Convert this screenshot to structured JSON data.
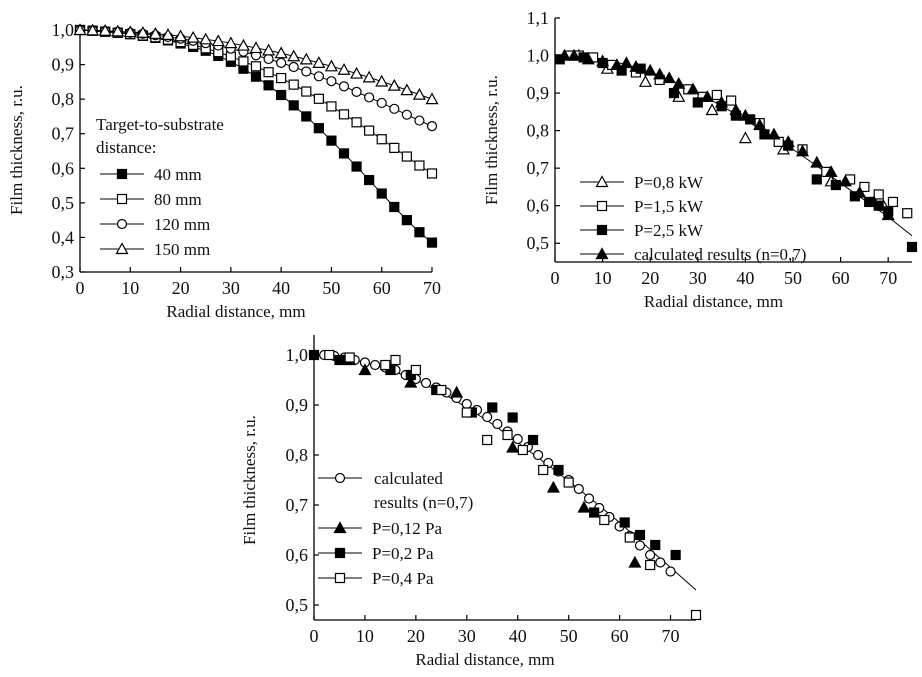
{
  "chart_data": [
    {
      "type": "scatter",
      "xlabel": "Radial distance, mm",
      "ylabel": "Film thickness, r.u.",
      "xlim": [
        0,
        70
      ],
      "ylim": [
        0.3,
        1.0
      ],
      "xticks": [
        "0",
        "10",
        "20",
        "30",
        "40",
        "50",
        "60",
        "70"
      ],
      "yticks": [
        "0,3",
        "0,4",
        "0,5",
        "0,6",
        "0,7",
        "0,8",
        "0,9",
        "1,0"
      ],
      "legend_title": [
        "Target-to-substrate",
        "distance:"
      ],
      "legend_placement": "left-middle",
      "grid": false,
      "series": [
        {
          "name": "40 mm",
          "marker": "square-filled",
          "x": [
            0,
            2.5,
            5,
            7.5,
            10,
            12.5,
            15,
            17.5,
            20,
            22.5,
            25,
            27.5,
            30,
            32.5,
            35,
            37.5,
            40,
            42.5,
            45,
            47.5,
            50,
            52.5,
            55,
            57.5,
            60,
            62.5,
            65,
            67.5,
            70
          ],
          "y": [
            1.0,
            0.998,
            0.995,
            0.992,
            0.988,
            0.983,
            0.977,
            0.97,
            0.961,
            0.951,
            0.94,
            0.925,
            0.908,
            0.888,
            0.865,
            0.84,
            0.812,
            0.782,
            0.75,
            0.716,
            0.68,
            0.643,
            0.605,
            0.566,
            0.527,
            0.488,
            0.45,
            0.415,
            0.385
          ]
        },
        {
          "name": "80 mm",
          "marker": "square-open",
          "x": [
            0,
            2.5,
            5,
            7.5,
            10,
            12.5,
            15,
            17.5,
            20,
            22.5,
            25,
            27.5,
            30,
            32.5,
            35,
            37.5,
            40,
            42.5,
            45,
            47.5,
            50,
            52.5,
            55,
            57.5,
            60,
            62.5,
            65,
            67.5,
            70
          ],
          "y": [
            1.0,
            0.998,
            0.995,
            0.992,
            0.988,
            0.984,
            0.979,
            0.972,
            0.965,
            0.957,
            0.947,
            0.936,
            0.923,
            0.909,
            0.895,
            0.878,
            0.861,
            0.842,
            0.822,
            0.801,
            0.779,
            0.756,
            0.733,
            0.709,
            0.684,
            0.659,
            0.634,
            0.608,
            0.585
          ]
        },
        {
          "name": "120 mm",
          "marker": "circle-open",
          "x": [
            0,
            2.5,
            5,
            7.5,
            10,
            12.5,
            15,
            17.5,
            20,
            22.5,
            25,
            27.5,
            30,
            32.5,
            35,
            37.5,
            40,
            42.5,
            45,
            47.5,
            50,
            52.5,
            55,
            57.5,
            60,
            62.5,
            65,
            67.5,
            70
          ],
          "y": [
            1.0,
            0.999,
            0.997,
            0.995,
            0.992,
            0.989,
            0.985,
            0.98,
            0.975,
            0.969,
            0.962,
            0.955,
            0.946,
            0.937,
            0.927,
            0.916,
            0.905,
            0.893,
            0.88,
            0.866,
            0.852,
            0.837,
            0.821,
            0.805,
            0.789,
            0.772,
            0.755,
            0.738,
            0.722
          ]
        },
        {
          "name": "150 mm",
          "marker": "triangle-open",
          "x": [
            0,
            2.5,
            5,
            7.5,
            10,
            12.5,
            15,
            17.5,
            20,
            22.5,
            25,
            27.5,
            30,
            32.5,
            35,
            37.5,
            40,
            42.5,
            45,
            47.5,
            50,
            52.5,
            55,
            57.5,
            60,
            62.5,
            65,
            67.5,
            70
          ],
          "y": [
            1.0,
            0.999,
            0.998,
            0.996,
            0.994,
            0.992,
            0.989,
            0.986,
            0.982,
            0.978,
            0.973,
            0.968,
            0.962,
            0.955,
            0.948,
            0.941,
            0.933,
            0.924,
            0.915,
            0.905,
            0.895,
            0.885,
            0.874,
            0.863,
            0.851,
            0.839,
            0.826,
            0.813,
            0.8
          ]
        }
      ]
    },
    {
      "type": "scatter",
      "xlabel": "Radial distance, mm",
      "ylabel": "Film thickness, r.u.",
      "xlim": [
        0,
        75
      ],
      "ylim": [
        0.45,
        1.1
      ],
      "xticks": [
        "0",
        "10",
        "20",
        "30",
        "40",
        "50",
        "60",
        "70"
      ],
      "yticks": [
        "0,5",
        "0,6",
        "0,7",
        "0,8",
        "0,9",
        "1,0",
        "1,1"
      ],
      "legend_placement": "bottom-left",
      "grid": false,
      "series": [
        {
          "name": "P=0,8 kW",
          "marker": "triangle-open",
          "x": [
            5,
            11,
            19,
            26,
            33,
            40,
            48,
            58,
            69
          ],
          "y": [
            1.0,
            0.965,
            0.93,
            0.89,
            0.855,
            0.78,
            0.75,
            0.665,
            0.6
          ]
        },
        {
          "name": "P=1,5 kW",
          "marker": "square-open",
          "x": [
            3,
            5,
            8,
            12,
            17,
            22,
            28,
            31,
            34,
            37,
            43,
            47,
            52,
            57,
            62,
            65,
            68,
            71,
            74
          ],
          "y": [
            1.0,
            1.0,
            0.995,
            0.975,
            0.955,
            0.935,
            0.91,
            0.89,
            0.895,
            0.88,
            0.82,
            0.77,
            0.75,
            0.69,
            0.67,
            0.65,
            0.63,
            0.61,
            0.58
          ]
        },
        {
          "name": "P=2,5 kW",
          "marker": "square-filled",
          "x": [
            1,
            6,
            10,
            14,
            18,
            25,
            30,
            35,
            38,
            41,
            44,
            49,
            55,
            59,
            63,
            66,
            68,
            70,
            75
          ],
          "y": [
            0.99,
            0.995,
            0.98,
            0.96,
            0.965,
            0.9,
            0.875,
            0.865,
            0.84,
            0.83,
            0.79,
            0.76,
            0.67,
            0.655,
            0.625,
            0.61,
            0.6,
            0.585,
            0.49
          ]
        },
        {
          "name": "calculated results (n=0,7)",
          "marker": "triangle-filled",
          "x": [
            2,
            4,
            7,
            10,
            13,
            15,
            17,
            20,
            22,
            24,
            26,
            29,
            32,
            35,
            38,
            40,
            43,
            46,
            49,
            52,
            55,
            58,
            61,
            64,
            67,
            70
          ],
          "y": [
            1.0,
            1.0,
            0.99,
            0.985,
            0.975,
            0.98,
            0.97,
            0.96,
            0.95,
            0.94,
            0.925,
            0.91,
            0.89,
            0.875,
            0.855,
            0.84,
            0.815,
            0.79,
            0.77,
            0.745,
            0.715,
            0.69,
            0.665,
            0.635,
            0.61,
            0.575
          ]
        }
      ],
      "calculated_line": {
        "x": [
          0,
          5,
          10,
          15,
          20,
          25,
          30,
          35,
          40,
          45,
          50,
          55,
          60,
          65,
          70,
          75
        ],
        "y": [
          1.0,
          0.998,
          0.99,
          0.976,
          0.956,
          0.93,
          0.9,
          0.866,
          0.828,
          0.79,
          0.75,
          0.706,
          0.66,
          0.615,
          0.57,
          0.52
        ]
      }
    },
    {
      "type": "scatter",
      "xlabel": "Radial distance, mm",
      "ylabel": "Film thickness, r.u.",
      "xlim": [
        0,
        75
      ],
      "ylim": [
        0.47,
        1.04
      ],
      "xticks": [
        "0",
        "10",
        "20",
        "30",
        "40",
        "50",
        "60",
        "70"
      ],
      "yticks": [
        "0,5",
        "0,6",
        "0,7",
        "0,8",
        "0,9",
        "1,0"
      ],
      "legend_placement": "left",
      "grid": false,
      "series": [
        {
          "name": "calculated results (n=0,7)",
          "legend_lines": [
            "calculated",
            "results (n=0,7)"
          ],
          "marker": "circle-open",
          "x": [
            2,
            4,
            6,
            8,
            10,
            12,
            14,
            16,
            18,
            20,
            22,
            24,
            26,
            28,
            30,
            32,
            34,
            36,
            38,
            40,
            42,
            44,
            46,
            48,
            50,
            52,
            54,
            56,
            58,
            60,
            62,
            64,
            66,
            68,
            70
          ],
          "y": [
            1.0,
            0.998,
            0.995,
            0.99,
            0.985,
            0.98,
            0.975,
            0.97,
            0.96,
            0.952,
            0.944,
            0.935,
            0.925,
            0.914,
            0.902,
            0.89,
            0.876,
            0.862,
            0.847,
            0.832,
            0.816,
            0.8,
            0.784,
            0.767,
            0.75,
            0.732,
            0.713,
            0.694,
            0.676,
            0.657,
            0.638,
            0.619,
            0.6,
            0.585,
            0.567
          ]
        },
        {
          "name": "P=0,12 Pa",
          "marker": "triangle-filled",
          "x": [
            7,
            10,
            19,
            28,
            39,
            47,
            53,
            63
          ],
          "y": [
            0.99,
            0.97,
            0.945,
            0.925,
            0.815,
            0.735,
            0.695,
            0.585
          ]
        },
        {
          "name": "P=0,2 Pa",
          "marker": "square-filled",
          "x": [
            0,
            5,
            15,
            19,
            24,
            31,
            35,
            39,
            43,
            48,
            55,
            61,
            64,
            67,
            71
          ],
          "y": [
            1.0,
            0.99,
            0.97,
            0.96,
            0.93,
            0.885,
            0.895,
            0.875,
            0.83,
            0.77,
            0.685,
            0.665,
            0.64,
            0.62,
            0.6
          ]
        },
        {
          "name": "P=0,4 Pa",
          "marker": "square-open",
          "x": [
            3,
            7,
            14,
            16,
            20,
            25,
            30,
            34,
            38,
            41,
            45,
            50,
            57,
            62,
            66,
            75
          ],
          "y": [
            1.0,
            0.995,
            0.98,
            0.99,
            0.97,
            0.93,
            0.885,
            0.83,
            0.84,
            0.81,
            0.77,
            0.745,
            0.67,
            0.635,
            0.58,
            0.48
          ]
        }
      ],
      "calculated_line": {
        "x": [
          0,
          5,
          10,
          15,
          20,
          25,
          30,
          35,
          40,
          45,
          50,
          55,
          60,
          65,
          70,
          75
        ],
        "y": [
          1.0,
          0.996,
          0.985,
          0.97,
          0.95,
          0.925,
          0.895,
          0.862,
          0.825,
          0.787,
          0.748,
          0.707,
          0.665,
          0.62,
          0.575,
          0.53
        ]
      }
    }
  ]
}
